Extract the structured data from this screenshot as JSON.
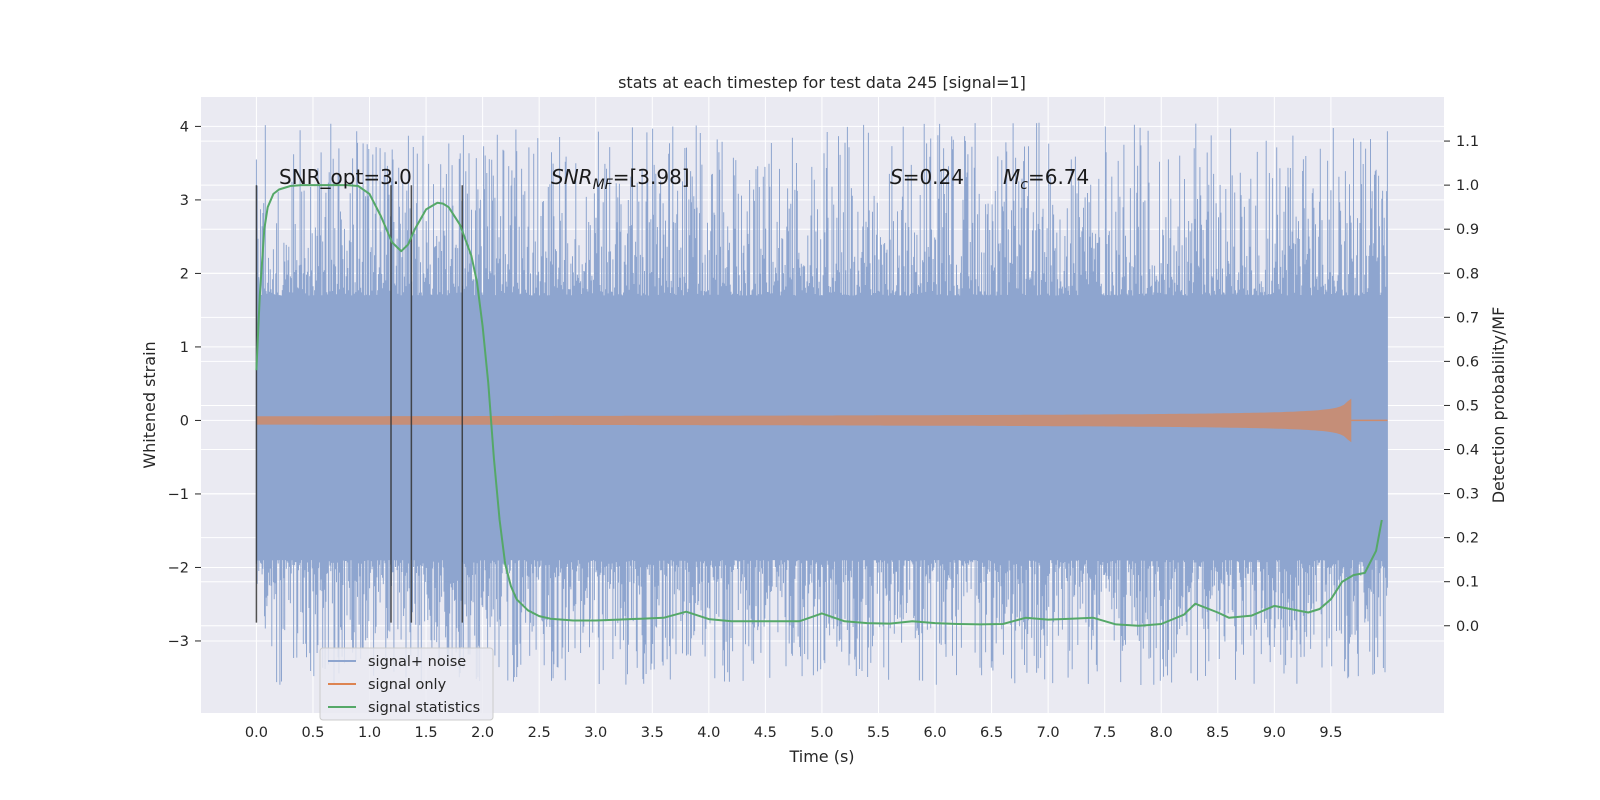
{
  "chart_data": {
    "type": "line",
    "title": "stats at each timestep for test data 245 [signal=1]",
    "xlabel": "Time (s)",
    "ylabel": "Whitened strain",
    "ylabel_right": "Detection probability/MF",
    "xlim": [
      -0.49,
      10.5
    ],
    "ylim": [
      -3.98,
      4.4
    ],
    "ylim_right": [
      -0.198,
      1.2
    ],
    "x_ticks": [
      "0.0",
      "0.5",
      "1.0",
      "1.5",
      "2.0",
      "2.5",
      "3.0",
      "3.5",
      "4.0",
      "4.5",
      "5.0",
      "5.5",
      "6.0",
      "6.5",
      "7.0",
      "7.5",
      "8.0",
      "8.5",
      "9.0",
      "9.5"
    ],
    "y_ticks": [
      "−3",
      "−2",
      "−1",
      "0",
      "1",
      "2",
      "3",
      "4"
    ],
    "y_ticks_right": [
      "0.0",
      "0.1",
      "0.2",
      "0.3",
      "0.4",
      "0.5",
      "0.6",
      "0.7",
      "0.8",
      "0.9",
      "1.0",
      "1.1"
    ],
    "grid": true,
    "legend_position": "lower-left",
    "colors": {
      "noise": "#8ea5cf",
      "signal": "#dd8452",
      "stats": "#55a868",
      "background": "#eaeaf2",
      "grid": "#ffffff",
      "vlines": "#333333"
    },
    "annotations": {
      "snr_opt": "SNR_opt=3.0",
      "snr_mf_base": "SNR",
      "snr_mf_sub": "MF",
      "snr_mf_value": "=[3.98]",
      "s_symbol": "S",
      "s_value": "=0.24",
      "mc_symbol": "M",
      "mc_sub": "c",
      "mc_value": "=6.74"
    },
    "series": [
      {
        "name": "signal+ noise",
        "kind": "noise_band",
        "x_range": [
          0,
          10
        ],
        "core_band": [
          -1.6,
          1.4
        ],
        "peak_range": [
          -3.6,
          4.05
        ]
      },
      {
        "name": "signal only",
        "kind": "chirp",
        "x_range": [
          0,
          9.68
        ],
        "max_amplitude": 0.3
      },
      {
        "name": "signal statistics",
        "axis": "right",
        "x": [
          0.0,
          0.03,
          0.07,
          0.1,
          0.15,
          0.2,
          0.3,
          0.4,
          0.5,
          0.6,
          0.7,
          0.8,
          0.9,
          1.0,
          1.1,
          1.2,
          1.28,
          1.34,
          1.4,
          1.5,
          1.6,
          1.65,
          1.7,
          1.8,
          1.9,
          1.95,
          2.0,
          2.05,
          2.1,
          2.15,
          2.2,
          2.25,
          2.3,
          2.4,
          2.5,
          2.6,
          2.8,
          3.0,
          3.2,
          3.4,
          3.6,
          3.8,
          4.0,
          4.2,
          4.5,
          4.8,
          5.0,
          5.2,
          5.4,
          5.6,
          5.8,
          6.0,
          6.2,
          6.4,
          6.6,
          6.8,
          7.0,
          7.2,
          7.4,
          7.6,
          7.8,
          8.0,
          8.2,
          8.3,
          8.5,
          8.6,
          8.8,
          9.0,
          9.1,
          9.3,
          9.4,
          9.5,
          9.6,
          9.7,
          9.8,
          9.9,
          9.95
        ],
        "values": [
          0.58,
          0.75,
          0.9,
          0.95,
          0.98,
          0.99,
          0.998,
          1.0,
          1.0,
          1.0,
          1.0,
          1.0,
          0.998,
          0.98,
          0.93,
          0.87,
          0.85,
          0.865,
          0.9,
          0.945,
          0.96,
          0.958,
          0.95,
          0.91,
          0.84,
          0.78,
          0.68,
          0.55,
          0.38,
          0.24,
          0.14,
          0.09,
          0.06,
          0.035,
          0.022,
          0.016,
          0.012,
          0.012,
          0.014,
          0.016,
          0.018,
          0.032,
          0.015,
          0.01,
          0.01,
          0.01,
          0.028,
          0.01,
          0.006,
          0.005,
          0.01,
          0.006,
          0.004,
          0.003,
          0.004,
          0.018,
          0.014,
          0.016,
          0.018,
          0.003,
          0.0,
          0.004,
          0.025,
          0.05,
          0.03,
          0.018,
          0.023,
          0.045,
          0.04,
          0.03,
          0.038,
          0.06,
          0.1,
          0.115,
          0.12,
          0.17,
          0.24
        ]
      },
      {
        "name": "",
        "kind": "vlines",
        "x": [
          0.0,
          1.19,
          1.37,
          1.82
        ],
        "y_range": [
          -2.75,
          3.2
        ]
      }
    ]
  }
}
